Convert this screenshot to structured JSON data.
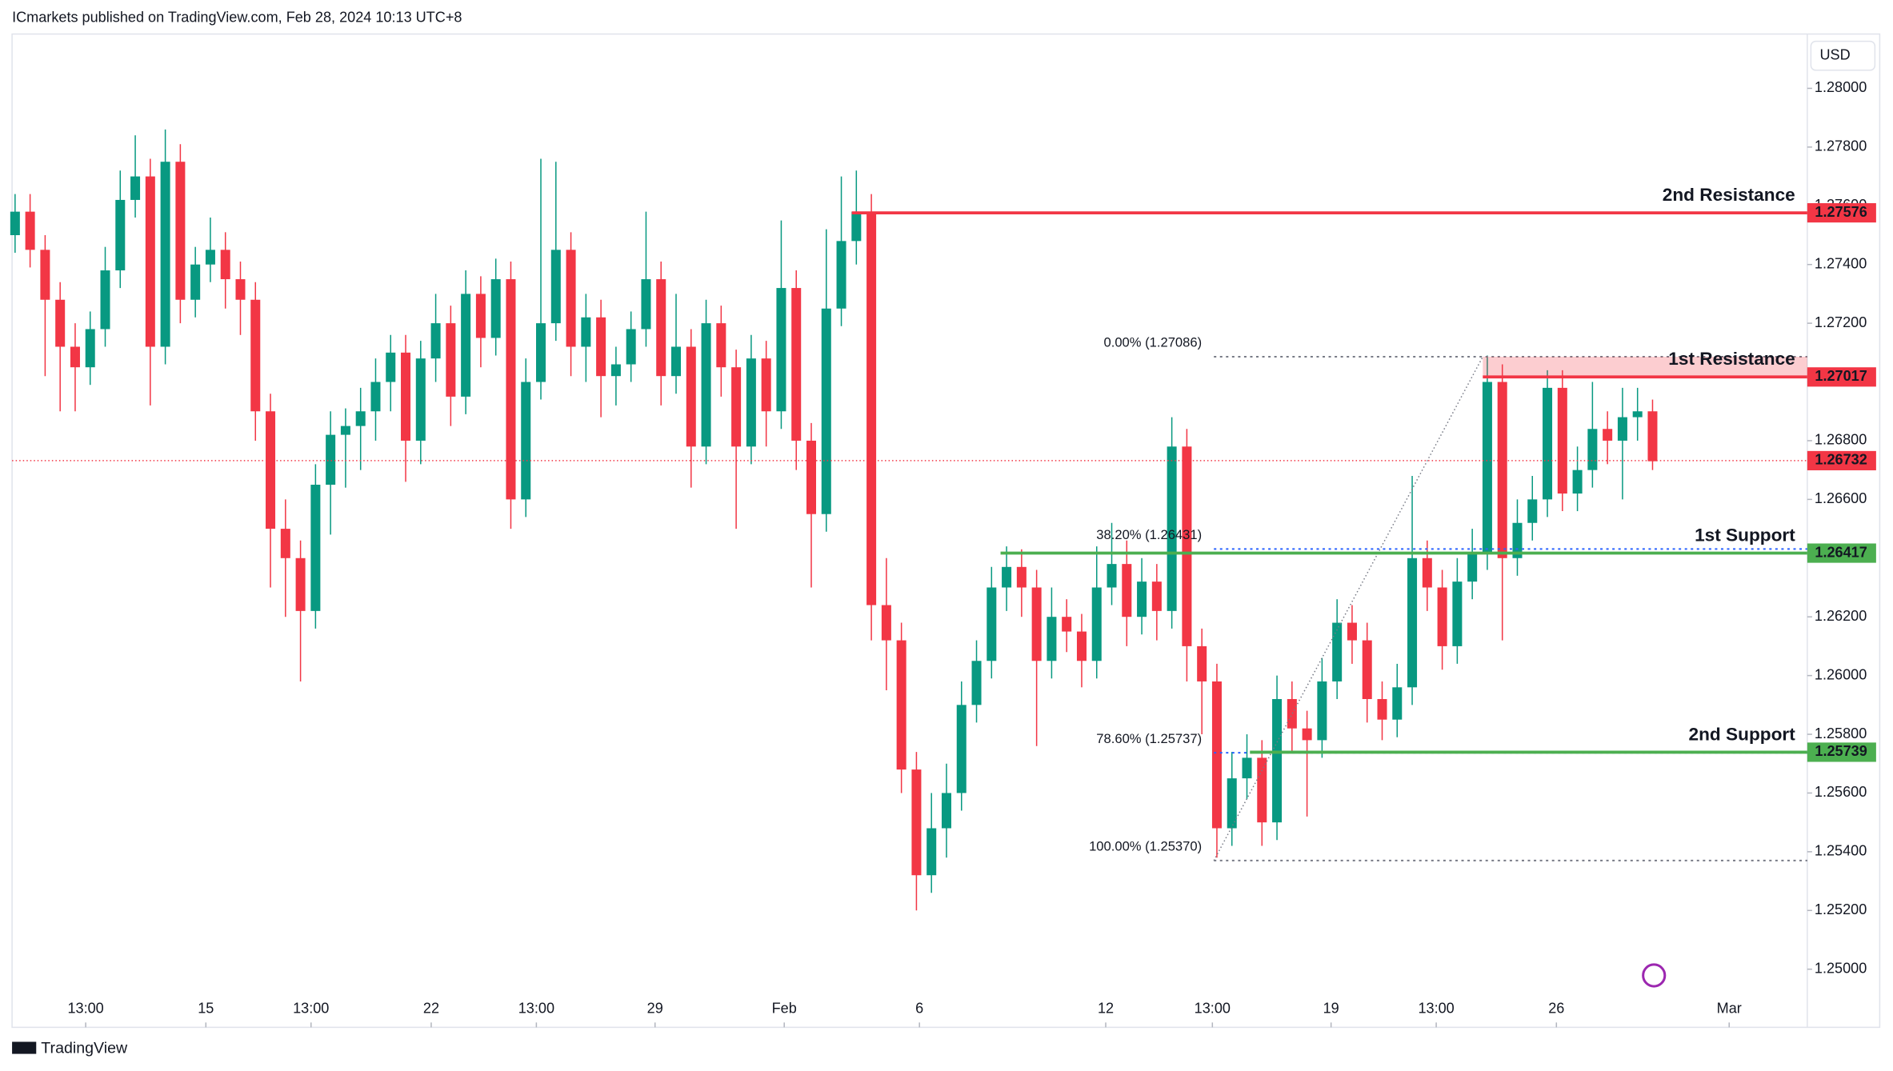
{
  "header": "ICmarkets published on TradingView.com, Feb 28, 2024 10:13 UTC+8",
  "footer": "TradingView",
  "chart_data": {
    "type": "candlestick",
    "currency": "USD",
    "up_color": "#089981",
    "down_color": "#f23645",
    "xlim": [
      -0.2,
      119.3
    ],
    "xticks": [
      {
        "value": 4.7,
        "label": "13:00"
      },
      {
        "value": 12.7,
        "label": "15"
      },
      {
        "value": 19.7,
        "label": "13:00"
      },
      {
        "value": 27.7,
        "label": "22"
      },
      {
        "value": 34.7,
        "label": "13:00"
      },
      {
        "value": 42.6,
        "label": "29"
      },
      {
        "value": 51.2,
        "label": "Feb"
      },
      {
        "value": 60.2,
        "label": "6"
      },
      {
        "value": 72.6,
        "label": "12"
      },
      {
        "value": 79.7,
        "label": "13:00"
      },
      {
        "value": 87.6,
        "label": "19"
      },
      {
        "value": 94.6,
        "label": "13:00"
      },
      {
        "value": 102.6,
        "label": "26"
      },
      {
        "value": 114.1,
        "label": "Mar"
      }
    ],
    "ylim": [
      1.24802,
      1.28185
    ],
    "yticks": [
      {
        "value": 1.25,
        "label": "1.25000"
      },
      {
        "value": 1.252,
        "label": "1.25200"
      },
      {
        "value": 1.254,
        "label": "1.25400"
      },
      {
        "value": 1.256,
        "label": "1.25600"
      },
      {
        "value": 1.258,
        "label": "1.25800"
      },
      {
        "value": 1.26,
        "label": "1.26000"
      },
      {
        "value": 1.262,
        "label": "1.26200"
      },
      {
        "value": 1.264,
        "label": "1.26400"
      },
      {
        "value": 1.266,
        "label": "1.26600"
      },
      {
        "value": 1.268,
        "label": "1.26800"
      },
      {
        "value": 1.27,
        "label": "1.27000"
      },
      {
        "value": 1.272,
        "label": "1.27200"
      },
      {
        "value": 1.274,
        "label": "1.27400"
      },
      {
        "value": 1.276,
        "label": "1.27600"
      },
      {
        "value": 1.278,
        "label": "1.27800"
      },
      {
        "value": 1.28,
        "label": "1.28000"
      }
    ],
    "open": [
      1.275,
      1.2758,
      1.2745,
      1.2728,
      1.2712,
      1.2705,
      1.2718,
      1.2738,
      1.2762,
      1.277,
      1.2712,
      1.2775,
      1.2728,
      1.274,
      1.2745,
      1.2735,
      1.2728,
      1.269,
      1.265,
      1.264,
      1.2622,
      1.2665,
      1.2682,
      1.2685,
      1.269,
      1.27,
      1.271,
      1.268,
      1.2708,
      1.272,
      1.2695,
      1.273,
      1.2715,
      1.2735,
      1.266,
      1.27,
      1.272,
      1.2745,
      1.2712,
      1.2722,
      1.2702,
      1.2706,
      1.2718,
      1.2735,
      1.2702,
      1.2712,
      1.2678,
      1.272,
      1.2705,
      1.2678,
      1.2708,
      1.269,
      1.2732,
      1.268,
      1.2655,
      1.2725,
      1.2748,
      1.2758,
      1.2624,
      1.2612,
      1.2568,
      1.2532,
      1.2548,
      1.256,
      1.259,
      1.2605,
      1.263,
      1.2637,
      1.263,
      1.2605,
      1.262,
      1.2615,
      1.2605,
      1.263,
      1.2638,
      1.262,
      1.2632,
      1.2622,
      1.2678,
      1.261,
      1.2598,
      1.2548,
      1.2565,
      1.2572,
      1.255,
      1.2592,
      1.2582,
      1.2578,
      1.2598,
      1.2618,
      1.2612,
      1.2592,
      1.2585,
      1.2596,
      1.264,
      1.263,
      1.261,
      1.2632,
      1.2642,
      1.27,
      1.264,
      1.2652,
      1.266,
      1.2698,
      1.2662,
      1.267,
      1.2684,
      1.268,
      1.2688,
      1.269
    ],
    "high": [
      1.2764,
      1.2764,
      1.275,
      1.2734,
      1.272,
      1.2724,
      1.2746,
      1.2772,
      1.2784,
      1.2776,
      1.2786,
      1.2781,
      1.2746,
      1.2756,
      1.2751,
      1.2741,
      1.2734,
      1.2696,
      1.266,
      1.2646,
      1.2672,
      1.269,
      1.2691,
      1.2698,
      1.2708,
      1.2716,
      1.2716,
      1.2714,
      1.273,
      1.2726,
      1.2738,
      1.2736,
      1.2742,
      1.2741,
      1.2708,
      1.2776,
      1.2775,
      1.2751,
      1.273,
      1.2728,
      1.2712,
      1.2724,
      1.2758,
      1.2741,
      1.273,
      1.2718,
      1.2728,
      1.2726,
      1.2711,
      1.2716,
      1.2714,
      1.2755,
      1.2738,
      1.2686,
      1.2752,
      1.277,
      1.2772,
      1.2764,
      1.264,
      1.2618,
      1.2574,
      1.256,
      1.257,
      1.2598,
      1.2612,
      1.2637,
      1.2644,
      1.2643,
      1.2636,
      1.263,
      1.2626,
      1.2621,
      1.2644,
      1.2652,
      1.2646,
      1.264,
      1.2638,
      1.2688,
      1.2684,
      1.2616,
      1.2604,
      1.2574,
      1.258,
      1.2578,
      1.26,
      1.2598,
      1.2588,
      1.2606,
      1.2626,
      1.2624,
      1.2618,
      1.2598,
      1.2604,
      1.2668,
      1.2646,
      1.2636,
      1.264,
      1.265,
      1.2709,
      1.2706,
      1.266,
      1.2668,
      1.2704,
      1.2704,
      1.2678,
      1.27,
      1.269,
      1.2698,
      1.2698,
      1.2694
    ],
    "low": [
      1.2744,
      1.2739,
      1.2702,
      1.269,
      1.269,
      1.2699,
      1.2712,
      1.2732,
      1.2756,
      1.2692,
      1.2706,
      1.272,
      1.2722,
      1.2734,
      1.2725,
      1.2716,
      1.268,
      1.263,
      1.262,
      1.2598,
      1.2616,
      1.2648,
      1.2664,
      1.267,
      1.268,
      1.269,
      1.2666,
      1.2672,
      1.27,
      1.2685,
      1.2689,
      1.2705,
      1.2709,
      1.265,
      1.2654,
      1.2694,
      1.2714,
      1.2702,
      1.27,
      1.2688,
      1.2692,
      1.27,
      1.2712,
      1.2692,
      1.2696,
      1.2664,
      1.2672,
      1.2695,
      1.265,
      1.2672,
      1.2678,
      1.2684,
      1.267,
      1.263,
      1.2649,
      1.2719,
      1.274,
      1.2612,
      1.2595,
      1.256,
      1.252,
      1.2526,
      1.2538,
      1.2554,
      1.2584,
      1.2599,
      1.2622,
      1.262,
      1.2576,
      1.2599,
      1.2608,
      1.2596,
      1.2599,
      1.2624,
      1.261,
      1.2614,
      1.2612,
      1.2616,
      1.2598,
      1.258,
      1.2538,
      1.2542,
      1.2558,
      1.2542,
      1.2544,
      1.2574,
      1.2552,
      1.2572,
      1.2592,
      1.2604,
      1.2584,
      1.2578,
      1.2579,
      1.259,
      1.2622,
      1.2602,
      1.2604,
      1.2626,
      1.2636,
      1.2612,
      1.2634,
      1.2646,
      1.2654,
      1.2656,
      1.2656,
      1.2664,
      1.2672,
      1.266,
      1.268,
      1.267
    ],
    "close": [
      1.2758,
      1.2745,
      1.2728,
      1.2712,
      1.2705,
      1.2718,
      1.2738,
      1.2762,
      1.277,
      1.2712,
      1.2775,
      1.2728,
      1.274,
      1.2745,
      1.2735,
      1.2728,
      1.269,
      1.265,
      1.264,
      1.2622,
      1.2665,
      1.2682,
      1.2685,
      1.269,
      1.27,
      1.271,
      1.268,
      1.2708,
      1.272,
      1.2695,
      1.273,
      1.2715,
      1.2735,
      1.266,
      1.27,
      1.272,
      1.2745,
      1.2712,
      1.2722,
      1.2702,
      1.2706,
      1.2718,
      1.2735,
      1.2702,
      1.2712,
      1.2678,
      1.272,
      1.2705,
      1.2678,
      1.2708,
      1.269,
      1.2732,
      1.268,
      1.2655,
      1.2725,
      1.2748,
      1.2758,
      1.2624,
      1.2612,
      1.2568,
      1.2532,
      1.2548,
      1.256,
      1.259,
      1.2605,
      1.263,
      1.2637,
      1.263,
      1.2605,
      1.262,
      1.2615,
      1.2605,
      1.263,
      1.2638,
      1.262,
      1.2632,
      1.2622,
      1.2678,
      1.261,
      1.2598,
      1.2548,
      1.2565,
      1.2572,
      1.255,
      1.2592,
      1.2582,
      1.2578,
      1.2598,
      1.2618,
      1.2612,
      1.2592,
      1.2585,
      1.2596,
      1.264,
      1.263,
      1.261,
      1.2632,
      1.2642,
      1.27,
      1.264,
      1.2652,
      1.266,
      1.2698,
      1.2662,
      1.267,
      1.2684,
      1.268,
      1.2688,
      1.269,
      1.2673
    ],
    "current_price": 1.26732,
    "levels": [
      {
        "name": "2nd Resistance",
        "value": 1.27576,
        "color": "#f23645",
        "x_start": 55.7
      },
      {
        "name": "1st Resistance",
        "value": 1.27017,
        "zone_top": 1.27086,
        "color": "#f23645",
        "x_start": 97.7
      },
      {
        "name": "1st Support",
        "value": 1.26417,
        "color": "#4caf50",
        "x_start": 65.6
      },
      {
        "name": "2nd Support",
        "value": 1.25739,
        "color": "#4caf50",
        "x_start": 82.2
      }
    ],
    "fib": [
      {
        "label": "0.00% (1.27086)",
        "value": 1.27086,
        "color": "#787b86",
        "x_start": 79.8
      },
      {
        "label": "38.20% (1.26431)",
        "value": 1.26431,
        "color": "#2962ff",
        "x_start": 79.8
      },
      {
        "label": "78.60% (1.25737)",
        "value": 1.25737,
        "color": "#2962ff",
        "x_start": 79.8
      },
      {
        "label": "100.00% (1.25370)",
        "value": 1.2537,
        "color": "#787b86",
        "x_start": 79.8
      }
    ],
    "trend_line": {
      "x": [
        79.8,
        97.7
      ],
      "y": [
        1.2537,
        1.27086
      ]
    }
  }
}
